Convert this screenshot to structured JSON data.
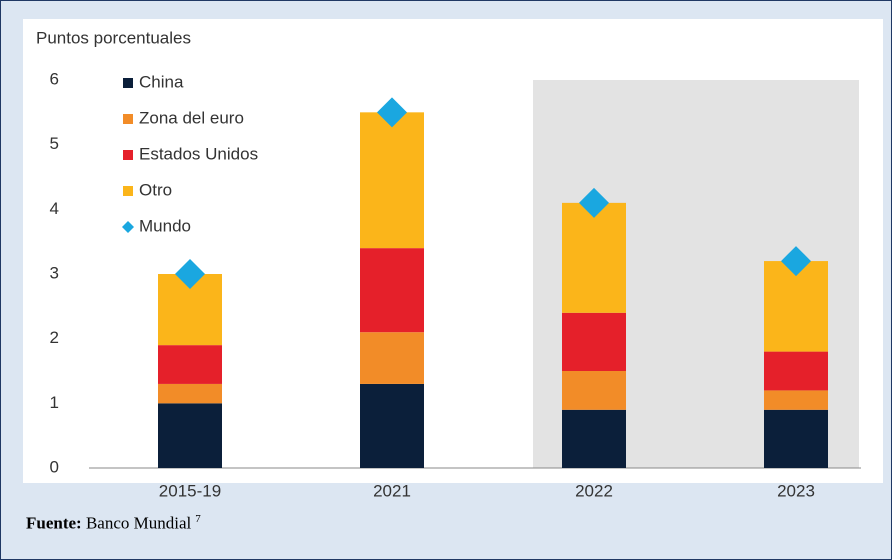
{
  "chart_data": {
    "type": "stacked_bar",
    "y_label": "Puntos porcentuales",
    "categories": [
      "2015-19",
      "2021",
      "2022",
      "2023"
    ],
    "series": [
      {
        "name": "China",
        "color": "#0b1f3a",
        "values": [
          1.0,
          1.3,
          0.9,
          0.9
        ]
      },
      {
        "name": "Zona del euro",
        "color": "#f28c28",
        "values": [
          0.3,
          0.8,
          0.6,
          0.3
        ]
      },
      {
        "name": "Estados Unidos",
        "color": "#e5202a",
        "values": [
          0.6,
          1.3,
          0.9,
          0.6
        ]
      },
      {
        "name": "Otro",
        "color": "#fbb51a",
        "values": [
          1.1,
          2.1,
          1.7,
          1.4
        ]
      }
    ],
    "world": {
      "name": "Mundo",
      "color": "#1aa7e0",
      "values": [
        3.0,
        5.5,
        4.1,
        3.2
      ]
    },
    "ylim": [
      0,
      6
    ],
    "yticks": [
      0,
      1,
      2,
      3,
      4,
      5,
      6
    ]
  },
  "source": {
    "label": "Fuente:",
    "text": "Banco Mundial",
    "note": "7"
  }
}
